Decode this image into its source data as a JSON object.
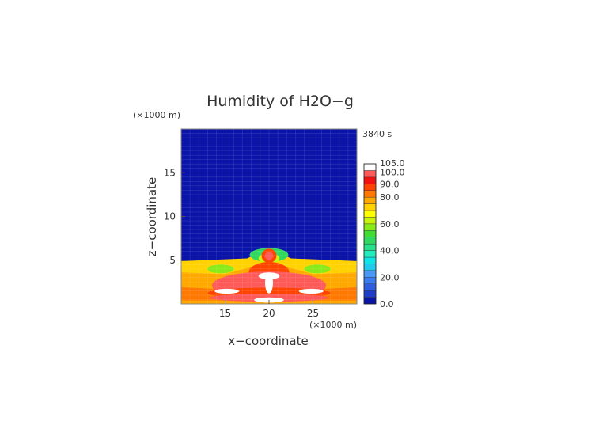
{
  "chart_data": {
    "type": "heatmap",
    "title": "Humidity of H2O−g",
    "time_label": "3840 s",
    "xlabel": "x−coordinate",
    "ylabel": "z−coordinate",
    "x_unit_label": "(×1000 m)",
    "y_unit_label": "(×1000 m)",
    "xlim": [
      10,
      30
    ],
    "ylim": [
      0,
      20
    ],
    "x_ticks": [
      15,
      20,
      25
    ],
    "x_tick_labels": [
      "15",
      "20",
      "25"
    ],
    "y_ticks": [
      5,
      10,
      15
    ],
    "y_tick_labels": [
      "5",
      "10",
      "15"
    ],
    "colorbar": {
      "levels": [
        0,
        5,
        10,
        15,
        20,
        25,
        30,
        35,
        40,
        45,
        50,
        55,
        60,
        65,
        70,
        75,
        80,
        85,
        90,
        95,
        100,
        105
      ],
      "colors": [
        "#0a14a8",
        "#1e3cc8",
        "#2e5ee0",
        "#3a7cf0",
        "#4a98f4",
        "#22c8ee",
        "#10e4e4",
        "#20ecbe",
        "#28e08c",
        "#30d860",
        "#40dc30",
        "#88ea18",
        "#c8f40c",
        "#ffff00",
        "#ffd200",
        "#ffa800",
        "#ff7800",
        "#ff4400",
        "#f21010",
        "#ff5a5a",
        "#ffffff"
      ],
      "tick_values": [
        0,
        20,
        40,
        60,
        80,
        90,
        100,
        105
      ],
      "tick_labels": [
        "0.0",
        "20.0",
        "40.0",
        "60.0",
        "80.0",
        "90.0",
        "100.0",
        "105.0"
      ]
    },
    "field": {
      "background_value": 2,
      "boundary_layer_top": [
        [
          10,
          4.9
        ],
        [
          18,
          5.2
        ],
        [
          20,
          6.3
        ],
        [
          22,
          5.2
        ],
        [
          30,
          4.9
        ]
      ],
      "regions": [
        {
          "shape": "polygon",
          "value": 72,
          "points": [
            [
              10,
              4.9
            ],
            [
              17.5,
              5.2
            ],
            [
              20,
              6.4
            ],
            [
              22.5,
              5.2
            ],
            [
              30,
              4.9
            ],
            [
              30,
              0
            ],
            [
              10,
              0
            ]
          ]
        },
        {
          "shape": "polygon",
          "value": 77,
          "points": [
            [
              10,
              3.6
            ],
            [
              15,
              3.4
            ],
            [
              20,
              4.8
            ],
            [
              25,
              3.4
            ],
            [
              30,
              3.6
            ],
            [
              30,
              0
            ],
            [
              10,
              0
            ]
          ]
        },
        {
          "shape": "polygon",
          "value": 84,
          "points": [
            [
              10,
              1.9
            ],
            [
              14,
              1.7
            ],
            [
              17.5,
              3.4
            ],
            [
              20,
              4.8
            ],
            [
              22.5,
              3.4
            ],
            [
              26,
              1.7
            ],
            [
              30,
              1.9
            ],
            [
              30,
              0.4
            ],
            [
              10,
              0.4
            ]
          ]
        },
        {
          "shape": "ellipse",
          "value": 48,
          "cx": 20,
          "cy": 5.6,
          "rx": 2.2,
          "ry": 0.8
        },
        {
          "shape": "ellipse",
          "value": 55,
          "cx": 14.5,
          "cy": 4.0,
          "rx": 1.5,
          "ry": 0.5
        },
        {
          "shape": "ellipse",
          "value": 55,
          "cx": 25.5,
          "cy": 4.0,
          "rx": 1.5,
          "ry": 0.5
        },
        {
          "shape": "ellipse",
          "value": 62,
          "cx": 20,
          "cy": 5.2,
          "rx": 1.2,
          "ry": 0.6
        },
        {
          "shape": "ellipse",
          "value": 88,
          "cx": 20,
          "cy": 5.5,
          "rx": 0.85,
          "ry": 0.8
        },
        {
          "shape": "ellipse",
          "value": 98,
          "cx": 20,
          "cy": 5.5,
          "rx": 0.5,
          "ry": 0.45
        },
        {
          "shape": "ellipse",
          "value": 88,
          "cx": 20,
          "cy": 3.6,
          "rx": 2.3,
          "ry": 1.2
        },
        {
          "shape": "ellipse",
          "value": 98,
          "cx": 20,
          "cy": 2.1,
          "rx": 6.5,
          "ry": 1.6
        },
        {
          "shape": "ellipse",
          "value": 88,
          "cx": 20,
          "cy": 1.25,
          "rx": 7.0,
          "ry": 0.6
        },
        {
          "shape": "ellipse",
          "value": 98,
          "cx": 20,
          "cy": 0.7,
          "rx": 6.8,
          "ry": 0.45
        },
        {
          "shape": "ellipse",
          "value": 102,
          "cx": 20,
          "cy": 3.2,
          "rx": 1.2,
          "ry": 0.4
        },
        {
          "shape": "ellipse",
          "value": 102,
          "cx": 20,
          "cy": 2.4,
          "rx": 0.45,
          "ry": 1.2
        },
        {
          "shape": "ellipse",
          "value": 102,
          "cx": 15.2,
          "cy": 1.45,
          "rx": 1.4,
          "ry": 0.28
        },
        {
          "shape": "ellipse",
          "value": 102,
          "cx": 24.8,
          "cy": 1.45,
          "rx": 1.4,
          "ry": 0.28
        },
        {
          "shape": "ellipse",
          "value": 102,
          "cx": 20,
          "cy": 0.45,
          "rx": 1.7,
          "ry": 0.3
        }
      ]
    },
    "grid": true
  }
}
